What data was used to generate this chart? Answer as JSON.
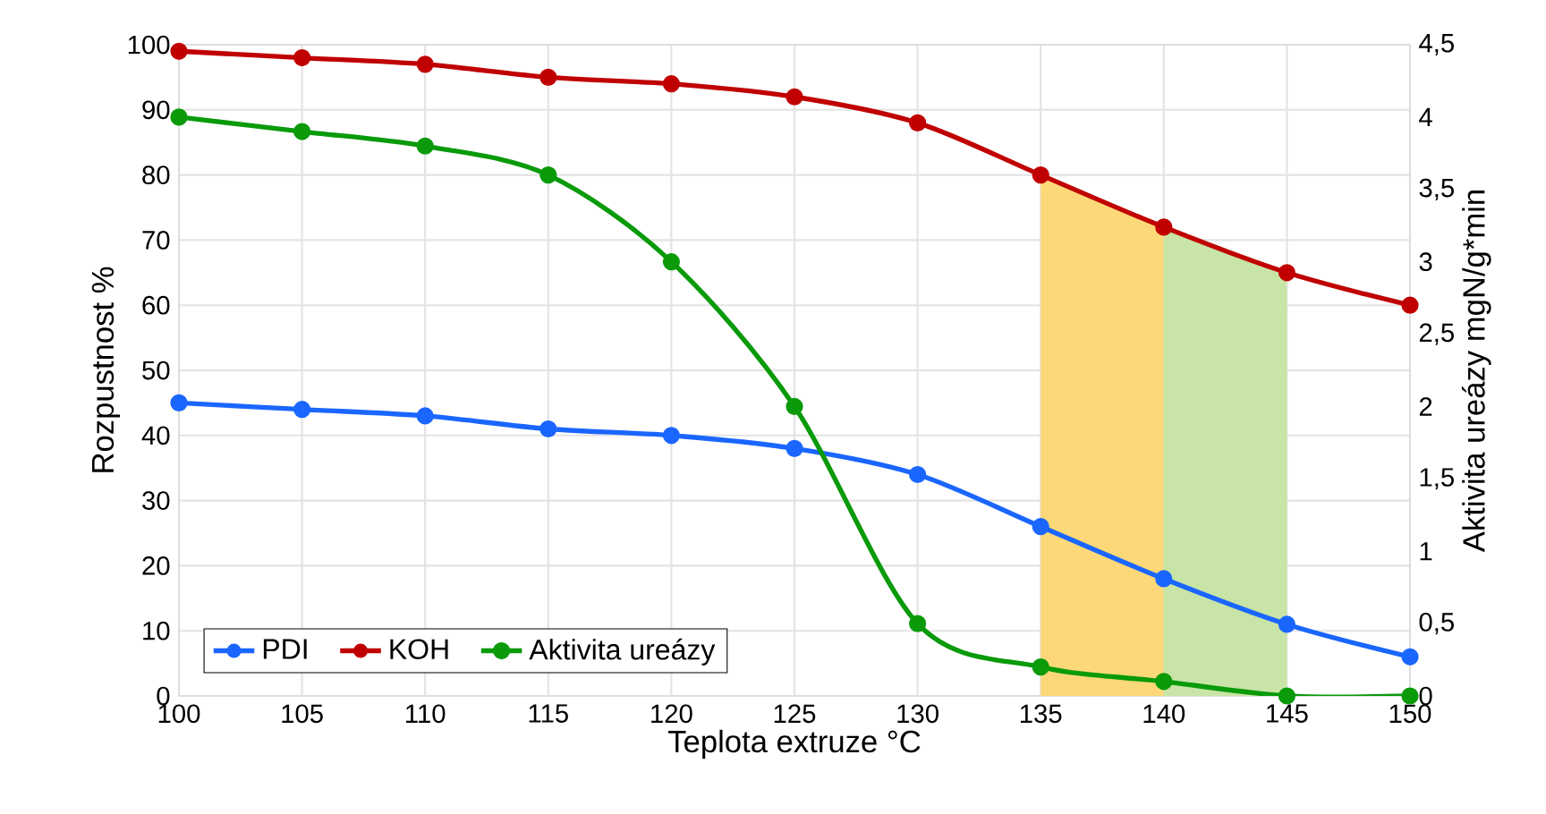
{
  "chart_data": {
    "type": "line",
    "xlabel": "Teplota extruze °C",
    "ylabel": "Rozpustnost %",
    "y2label": "Aktivita ureázy  mgN/g*min",
    "x": [
      100,
      105,
      110,
      115,
      120,
      125,
      130,
      135,
      140,
      145,
      150
    ],
    "series": [
      {
        "name": "PDI",
        "color": "#1a66ff",
        "values": [
          45,
          44,
          43,
          41,
          40,
          38,
          34,
          26,
          18,
          11,
          6
        ]
      },
      {
        "name": "KOH",
        "color": "#c00000",
        "values": [
          99,
          98,
          97,
          95,
          94,
          92,
          88,
          80,
          72,
          65,
          60
        ]
      },
      {
        "name": "Aktivita ureázy",
        "color": "#0a9a0a",
        "axis": "y2",
        "values": [
          4.0,
          3.9,
          3.8,
          3.6,
          3.0,
          2.0,
          0.5,
          0.2,
          0.1,
          0.0,
          0.0
        ]
      }
    ],
    "xlim": [
      100,
      150
    ],
    "xticks": [
      100,
      105,
      110,
      115,
      120,
      125,
      130,
      135,
      140,
      145,
      150
    ],
    "ylim": [
      0,
      100
    ],
    "yticks": [
      0,
      10,
      20,
      30,
      40,
      50,
      60,
      70,
      80,
      90,
      100
    ],
    "y2lim": [
      0,
      4.5
    ],
    "y2ticks": [
      0,
      {
        "value": 0.5,
        "label": "0,5"
      },
      1,
      {
        "value": 1.5,
        "label": "1,5"
      },
      2,
      {
        "value": 2.5,
        "label": "2,5"
      },
      3,
      {
        "value": 3.5,
        "label": "3,5"
      },
      4,
      {
        "value": 4.5,
        "label": "4,5"
      }
    ],
    "bands": [
      {
        "axis": "x",
        "from": 135,
        "to": 140,
        "color": "#fcd878"
      },
      {
        "axis": "x",
        "from": 140,
        "to": 145,
        "color": "#c8e4a6"
      }
    ],
    "grid": true,
    "legend": "bottom left",
    "marker": "circle",
    "line_style": "solid"
  }
}
